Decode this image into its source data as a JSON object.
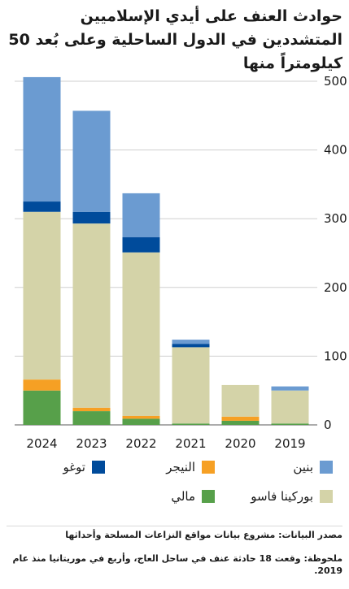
{
  "title": "حوادث العنف على أيدي الإسلاميين المتشددين في الدول الساحلية وعلى بُعد 50 كيلومتراً منها",
  "colors": {
    "benin": "#6b9bd1",
    "burkina": "#d4d3a8",
    "togo": "#004b9b",
    "niger": "#f6a024",
    "mali": "#57a04a"
  },
  "legend": [
    {
      "key": "benin",
      "label": "بنين"
    },
    {
      "key": "niger",
      "label": "النيجر"
    },
    {
      "key": "togo",
      "label": "توغو"
    },
    {
      "key": "burkina",
      "label": "بوركينا فاسو"
    },
    {
      "key": "mali",
      "label": "مالي"
    }
  ],
  "source": "مصدر البيانات: مشروع بيانات مواقع النزاعات المسلحة وأحداثها",
  "note": "ملحوظة: وقعت 18 حادثة عنف في ساحل العاج، وأربع في موريتانيا منذ عام 2019.",
  "chart_data": {
    "type": "bar",
    "stacked": true,
    "categories": [
      "2024",
      "2023",
      "2022",
      "2021",
      "2020",
      "2019"
    ],
    "ylim": [
      0,
      500
    ],
    "yticks": [
      0,
      100,
      200,
      300,
      400,
      500
    ],
    "grid": true,
    "series": [
      {
        "key": "mali",
        "name": "مالي",
        "values": [
          50,
          20,
          9,
          2,
          6,
          2
        ]
      },
      {
        "key": "niger",
        "name": "النيجر",
        "values": [
          16,
          5,
          4,
          0,
          6,
          0
        ]
      },
      {
        "key": "burkina",
        "name": "بوركينا فاسو",
        "values": [
          244,
          268,
          238,
          111,
          46,
          48
        ]
      },
      {
        "key": "togo",
        "name": "توغو",
        "values": [
          15,
          17,
          22,
          5,
          0,
          0
        ]
      },
      {
        "key": "benin",
        "name": "بنين",
        "values": [
          181,
          147,
          64,
          6,
          0,
          6
        ]
      }
    ]
  }
}
